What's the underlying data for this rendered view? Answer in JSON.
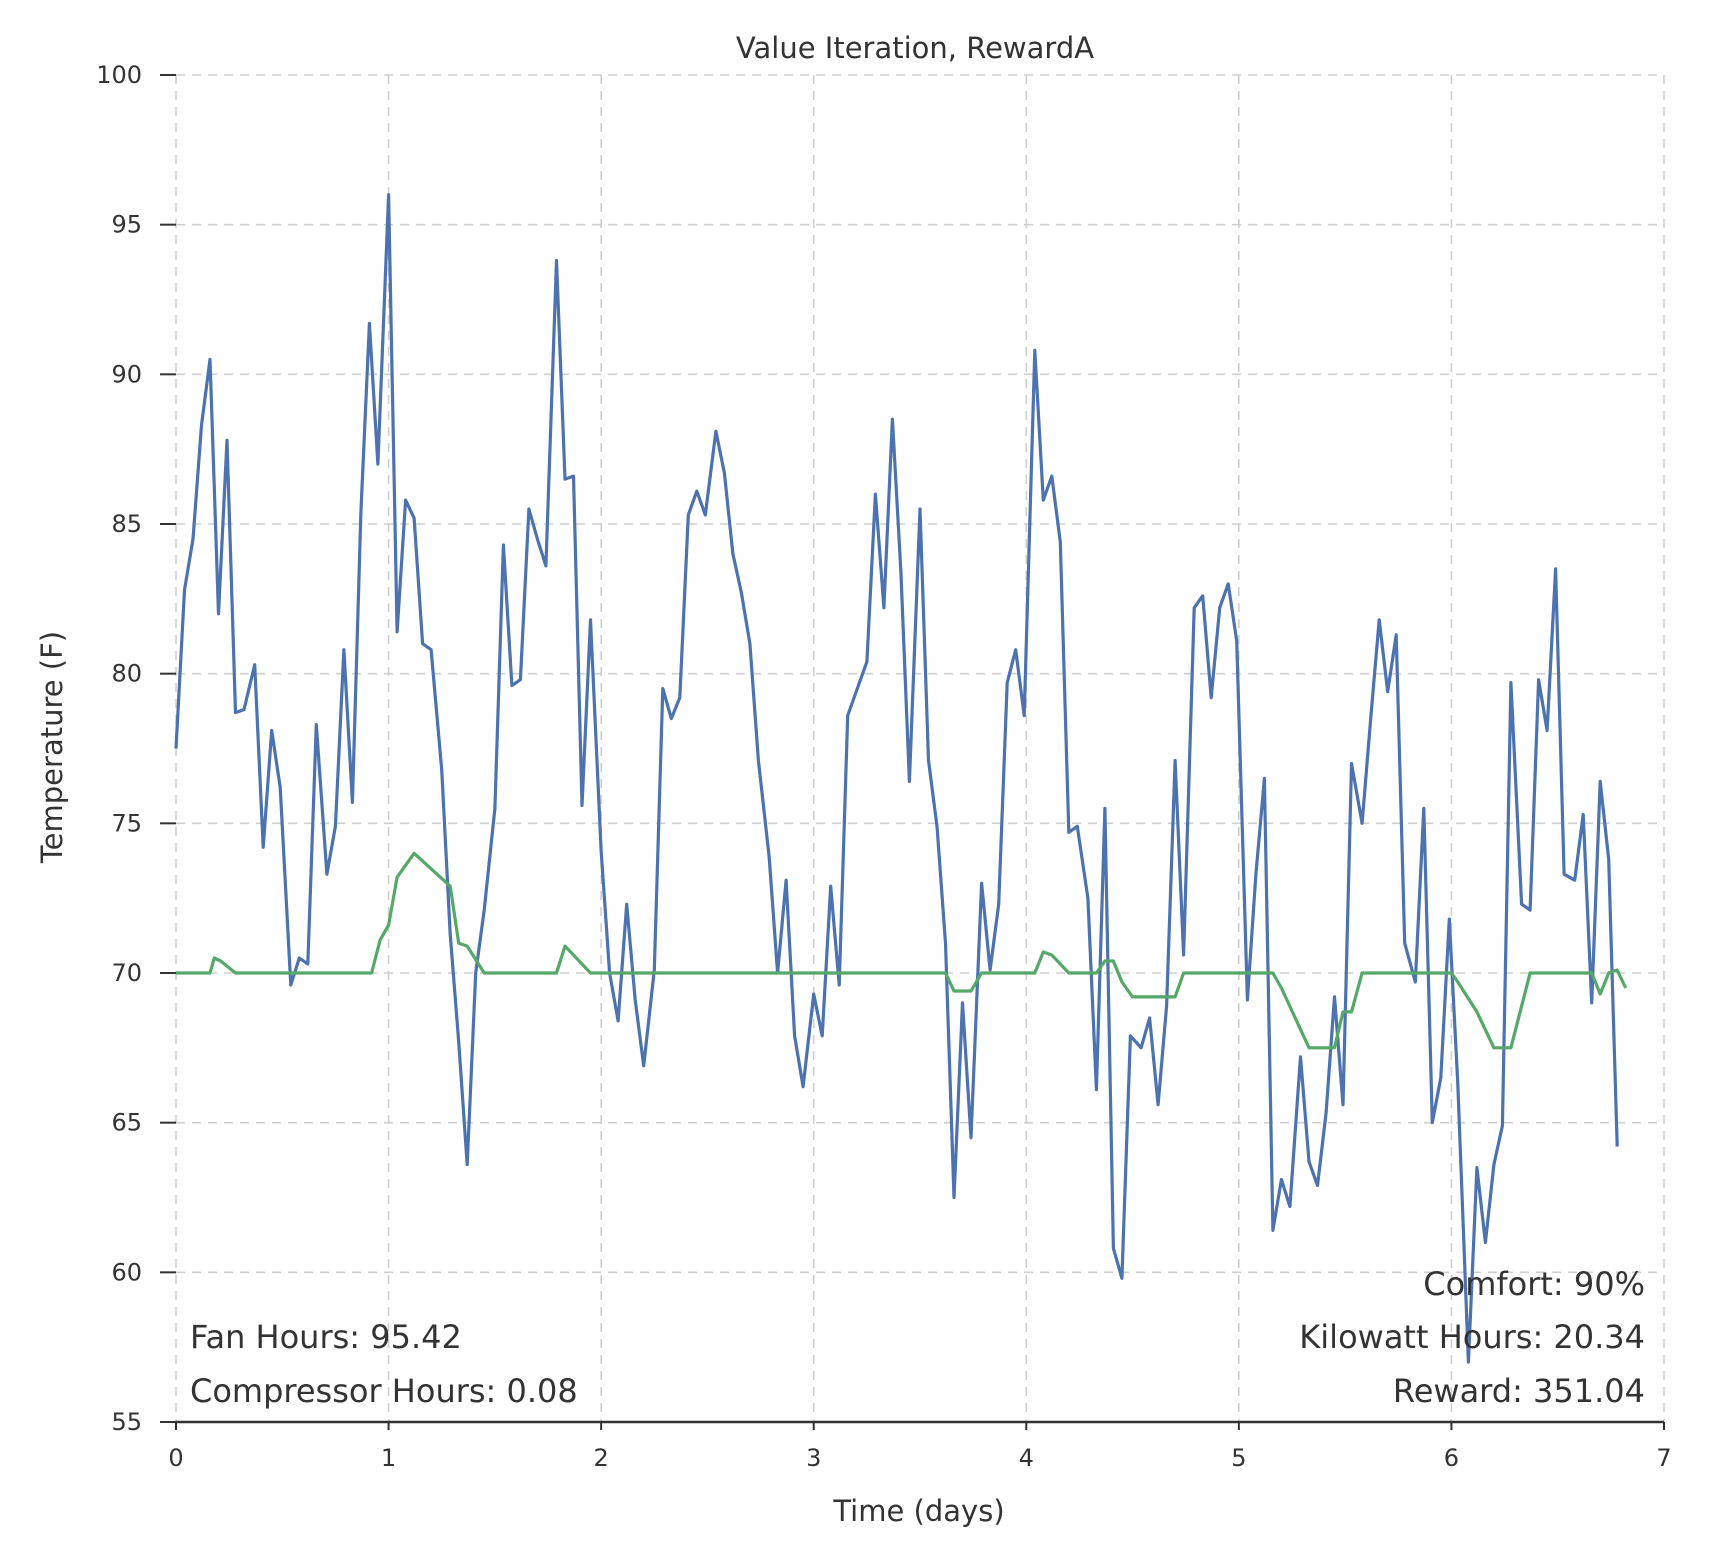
{
  "chart_data": {
    "type": "line",
    "title": "Value Iteration, RewardA",
    "xlabel": "Time (days)",
    "ylabel": "Temperature (F)",
    "xlim": [
      0,
      7
    ],
    "ylim": [
      55,
      100
    ],
    "x_ticks": [
      "0",
      "1",
      "2",
      "3",
      "4",
      "5",
      "6",
      "7"
    ],
    "y_ticks": [
      "55",
      "60",
      "65",
      "70",
      "75",
      "80",
      "85",
      "90",
      "95",
      "100"
    ],
    "grid": true,
    "series": [
      {
        "color": "#4c72b0",
        "points": [
          [
            0.0,
            77.5
          ],
          [
            0.04,
            82.8
          ],
          [
            0.08,
            84.5
          ],
          [
            0.12,
            88.3
          ],
          [
            0.16,
            90.5
          ],
          [
            0.2,
            82.0
          ],
          [
            0.24,
            87.8
          ],
          [
            0.28,
            78.7
          ],
          [
            0.32,
            78.8
          ],
          [
            0.37,
            80.3
          ],
          [
            0.41,
            74.2
          ],
          [
            0.45,
            78.1
          ],
          [
            0.49,
            76.2
          ],
          [
            0.54,
            69.6
          ],
          [
            0.58,
            70.5
          ],
          [
            0.62,
            70.3
          ],
          [
            0.66,
            78.3
          ],
          [
            0.71,
            73.3
          ],
          [
            0.75,
            74.9
          ],
          [
            0.79,
            80.8
          ],
          [
            0.83,
            75.7
          ],
          [
            0.87,
            85.4
          ],
          [
            0.91,
            91.7
          ],
          [
            0.95,
            87.0
          ],
          [
            1.0,
            96.0
          ],
          [
            1.04,
            81.4
          ],
          [
            1.08,
            85.8
          ],
          [
            1.12,
            85.2
          ],
          [
            1.16,
            81.0
          ],
          [
            1.2,
            80.8
          ],
          [
            1.25,
            76.8
          ],
          [
            1.29,
            71.3
          ],
          [
            1.33,
            67.7
          ],
          [
            1.37,
            63.6
          ],
          [
            1.41,
            70.0
          ],
          [
            1.45,
            72.1
          ],
          [
            1.5,
            75.5
          ],
          [
            1.54,
            84.3
          ],
          [
            1.58,
            79.6
          ],
          [
            1.62,
            79.8
          ],
          [
            1.66,
            85.5
          ],
          [
            1.7,
            84.5
          ],
          [
            1.74,
            83.6
          ],
          [
            1.79,
            93.8
          ],
          [
            1.83,
            86.5
          ],
          [
            1.87,
            86.6
          ],
          [
            1.91,
            75.6
          ],
          [
            1.95,
            81.8
          ],
          [
            2.0,
            74.1
          ],
          [
            2.04,
            70.0
          ],
          [
            2.08,
            68.4
          ],
          [
            2.12,
            72.3
          ],
          [
            2.16,
            69.1
          ],
          [
            2.2,
            66.9
          ],
          [
            2.25,
            70.1
          ],
          [
            2.29,
            79.5
          ],
          [
            2.33,
            78.5
          ],
          [
            2.37,
            79.2
          ],
          [
            2.41,
            85.3
          ],
          [
            2.45,
            86.1
          ],
          [
            2.49,
            85.3
          ],
          [
            2.54,
            88.1
          ],
          [
            2.58,
            86.7
          ],
          [
            2.62,
            84.0
          ],
          [
            2.66,
            82.7
          ],
          [
            2.7,
            81.0
          ],
          [
            2.74,
            77.1
          ],
          [
            2.79,
            73.9
          ],
          [
            2.83,
            70.0
          ],
          [
            2.87,
            73.1
          ],
          [
            2.91,
            67.9
          ],
          [
            2.95,
            66.2
          ],
          [
            3.0,
            69.3
          ],
          [
            3.04,
            67.9
          ],
          [
            3.08,
            72.9
          ],
          [
            3.12,
            69.6
          ],
          [
            3.16,
            78.6
          ],
          [
            3.2,
            79.4
          ],
          [
            3.25,
            80.4
          ],
          [
            3.29,
            86.0
          ],
          [
            3.33,
            82.2
          ],
          [
            3.37,
            88.5
          ],
          [
            3.41,
            83.4
          ],
          [
            3.45,
            76.4
          ],
          [
            3.5,
            85.5
          ],
          [
            3.54,
            77.1
          ],
          [
            3.58,
            74.9
          ],
          [
            3.62,
            71.0
          ],
          [
            3.66,
            62.5
          ],
          [
            3.7,
            69.0
          ],
          [
            3.74,
            64.5
          ],
          [
            3.79,
            73.0
          ],
          [
            3.83,
            70.1
          ],
          [
            3.87,
            72.3
          ],
          [
            3.91,
            79.7
          ],
          [
            3.95,
            80.8
          ],
          [
            3.99,
            78.6
          ],
          [
            4.04,
            90.8
          ],
          [
            4.08,
            85.8
          ],
          [
            4.12,
            86.6
          ],
          [
            4.16,
            84.4
          ],
          [
            4.2,
            74.7
          ],
          [
            4.24,
            74.9
          ],
          [
            4.29,
            72.5
          ],
          [
            4.33,
            66.1
          ],
          [
            4.37,
            75.5
          ],
          [
            4.41,
            60.8
          ],
          [
            4.45,
            59.8
          ],
          [
            4.49,
            67.9
          ],
          [
            4.54,
            67.5
          ],
          [
            4.58,
            68.5
          ],
          [
            4.62,
            65.6
          ],
          [
            4.66,
            68.9
          ],
          [
            4.7,
            77.1
          ],
          [
            4.74,
            70.6
          ],
          [
            4.79,
            82.2
          ],
          [
            4.83,
            82.6
          ],
          [
            4.87,
            79.2
          ],
          [
            4.91,
            82.2
          ],
          [
            4.95,
            83.0
          ],
          [
            4.99,
            81.1
          ],
          [
            5.04,
            69.1
          ],
          [
            5.08,
            73.3
          ],
          [
            5.12,
            76.5
          ],
          [
            5.16,
            61.4
          ],
          [
            5.2,
            63.1
          ],
          [
            5.24,
            62.2
          ],
          [
            5.29,
            67.2
          ],
          [
            5.33,
            63.7
          ],
          [
            5.37,
            62.9
          ],
          [
            5.41,
            65.3
          ],
          [
            5.45,
            69.2
          ],
          [
            5.49,
            65.6
          ],
          [
            5.53,
            77.0
          ],
          [
            5.58,
            75.0
          ],
          [
            5.62,
            78.5
          ],
          [
            5.66,
            81.8
          ],
          [
            5.7,
            79.4
          ],
          [
            5.74,
            81.3
          ],
          [
            5.78,
            71.0
          ],
          [
            5.83,
            69.7
          ],
          [
            5.87,
            75.5
          ],
          [
            5.91,
            65.0
          ],
          [
            5.95,
            66.5
          ],
          [
            5.99,
            71.8
          ],
          [
            6.03,
            66.3
          ],
          [
            6.08,
            57.0
          ],
          [
            6.12,
            63.5
          ],
          [
            6.16,
            61.0
          ],
          [
            6.2,
            63.6
          ],
          [
            6.24,
            64.9
          ],
          [
            6.28,
            79.7
          ],
          [
            6.33,
            72.3
          ],
          [
            6.37,
            72.1
          ],
          [
            6.41,
            79.8
          ],
          [
            6.45,
            78.1
          ],
          [
            6.49,
            83.5
          ],
          [
            6.53,
            73.3
          ],
          [
            6.58,
            73.1
          ],
          [
            6.62,
            75.3
          ],
          [
            6.66,
            69.0
          ],
          [
            6.7,
            76.4
          ],
          [
            6.74,
            73.8
          ],
          [
            6.78,
            64.2
          ]
        ]
      },
      {
        "color": "#55a868",
        "points": [
          [
            0.0,
            70.0
          ],
          [
            0.16,
            70.0
          ],
          [
            0.18,
            70.5
          ],
          [
            0.21,
            70.4
          ],
          [
            0.28,
            70.0
          ],
          [
            0.92,
            70.0
          ],
          [
            0.96,
            71.1
          ],
          [
            1.0,
            71.6
          ],
          [
            1.04,
            73.2
          ],
          [
            1.12,
            74.0
          ],
          [
            1.29,
            72.9
          ],
          [
            1.33,
            71.0
          ],
          [
            1.37,
            70.9
          ],
          [
            1.45,
            70.0
          ],
          [
            1.79,
            70.0
          ],
          [
            1.83,
            70.9
          ],
          [
            1.87,
            70.6
          ],
          [
            1.95,
            70.0
          ],
          [
            3.62,
            70.0
          ],
          [
            3.66,
            69.4
          ],
          [
            3.74,
            69.4
          ],
          [
            3.79,
            70.0
          ],
          [
            4.04,
            70.0
          ],
          [
            4.08,
            70.7
          ],
          [
            4.12,
            70.6
          ],
          [
            4.2,
            70.0
          ],
          [
            4.33,
            70.0
          ],
          [
            4.37,
            70.4
          ],
          [
            4.41,
            70.4
          ],
          [
            4.45,
            69.7
          ],
          [
            4.5,
            69.2
          ],
          [
            4.7,
            69.2
          ],
          [
            4.74,
            70.0
          ],
          [
            5.16,
            70.0
          ],
          [
            5.2,
            69.5
          ],
          [
            5.33,
            67.5
          ],
          [
            5.45,
            67.5
          ],
          [
            5.49,
            68.7
          ],
          [
            5.53,
            68.7
          ],
          [
            5.58,
            70.0
          ],
          [
            6.0,
            70.0
          ],
          [
            6.03,
            69.7
          ],
          [
            6.12,
            68.7
          ],
          [
            6.2,
            67.5
          ],
          [
            6.28,
            67.5
          ],
          [
            6.37,
            70.0
          ],
          [
            6.66,
            70.0
          ],
          [
            6.7,
            69.3
          ],
          [
            6.74,
            70.0
          ],
          [
            6.78,
            70.1
          ],
          [
            6.82,
            69.5
          ]
        ]
      }
    ],
    "annotations": {
      "fan_hours": "Fan Hours: 95.42",
      "compressor_hours": "Compressor Hours: 0.08",
      "comfort": "Comfort: 90%",
      "kilowatt_hours": "Kilowatt Hours: 20.34",
      "reward": "Reward: 351.04"
    }
  }
}
